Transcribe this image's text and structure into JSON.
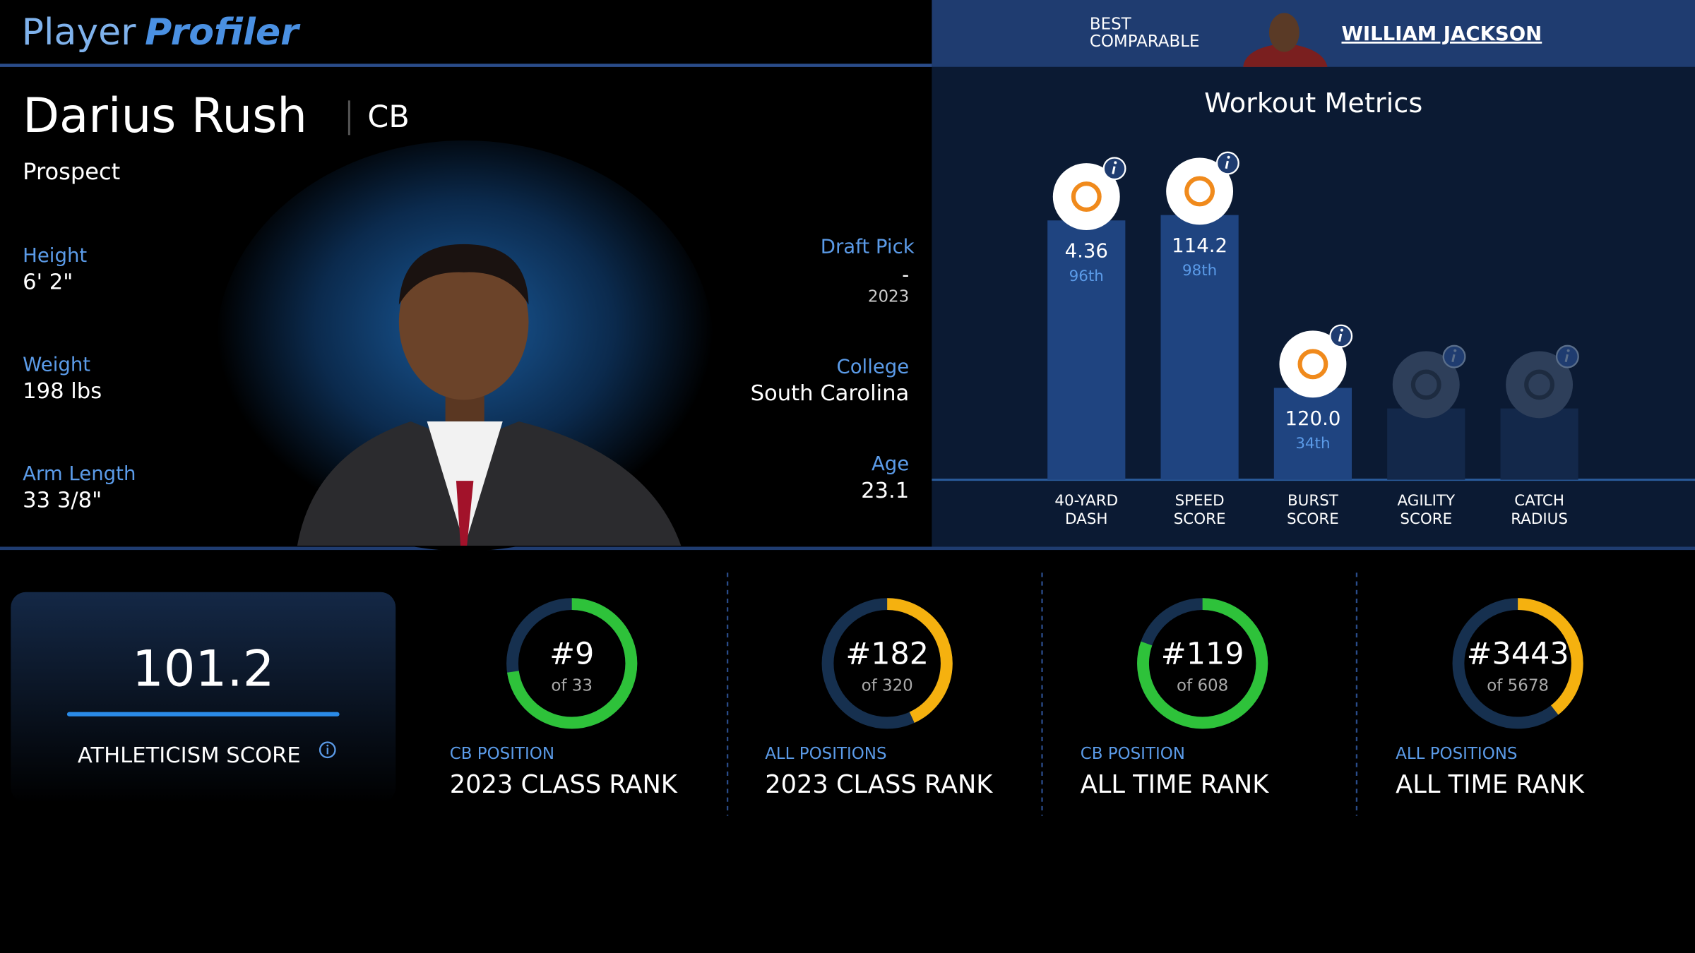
{
  "header": {
    "logo": [
      "Player",
      "Profiler"
    ],
    "comparable_label": [
      "BEST",
      "COMPARABLE"
    ],
    "comparable_name": "WILLIAM JACKSON"
  },
  "player": {
    "name": "Darius Rush",
    "position": "CB",
    "status": "Prospect",
    "stats_left": [
      {
        "label": "Height",
        "value": "6' 2\""
      },
      {
        "label": "Weight",
        "value": "198 lbs"
      },
      {
        "label": "Arm Length",
        "value": "33 3/8\""
      }
    ],
    "draft": {
      "label": "Draft Pick",
      "value": "-",
      "year": "2023"
    },
    "stats_right": [
      {
        "label": "College",
        "value": "South Carolina"
      },
      {
        "label": "Age",
        "value": "23.1"
      }
    ]
  },
  "workout": {
    "title": "Workout Metrics",
    "metrics": [
      {
        "name": [
          "40-YARD",
          "DASH"
        ],
        "value": "4.36",
        "percentile": 96,
        "percentile_label": "96th"
      },
      {
        "name": [
          "SPEED",
          "SCORE"
        ],
        "value": "114.2",
        "percentile": 98,
        "percentile_label": "98th"
      },
      {
        "name": [
          "BURST",
          "SCORE"
        ],
        "value": "120.0",
        "percentile": 34,
        "percentile_label": "34th"
      },
      {
        "name": [
          "AGILITY",
          "SCORE"
        ],
        "value": null,
        "percentile": null,
        "percentile_label": null
      },
      {
        "name": [
          "CATCH",
          "RADIUS"
        ],
        "value": null,
        "percentile": null,
        "percentile_label": null
      }
    ]
  },
  "athleticism": {
    "score": "101.2",
    "label": "ATHLETICISM SCORE"
  },
  "ranks": [
    {
      "rank": 9,
      "total": 33,
      "rank_label": "#9",
      "total_label": "of 33",
      "scope": "CB POSITION",
      "title": "2023 CLASS RANK"
    },
    {
      "rank": 182,
      "total": 320,
      "rank_label": "#182",
      "total_label": "of 320",
      "scope": "ALL POSITIONS",
      "title": "2023 CLASS RANK"
    },
    {
      "rank": 119,
      "total": 608,
      "rank_label": "#119",
      "total_label": "of 608",
      "scope": "CB POSITION",
      "title": "ALL TIME RANK"
    },
    {
      "rank": 3443,
      "total": 5678,
      "rank_label": "#3443",
      "total_label": "of 5678",
      "scope": "ALL POSITIONS",
      "title": "ALL TIME RANK"
    }
  ]
}
